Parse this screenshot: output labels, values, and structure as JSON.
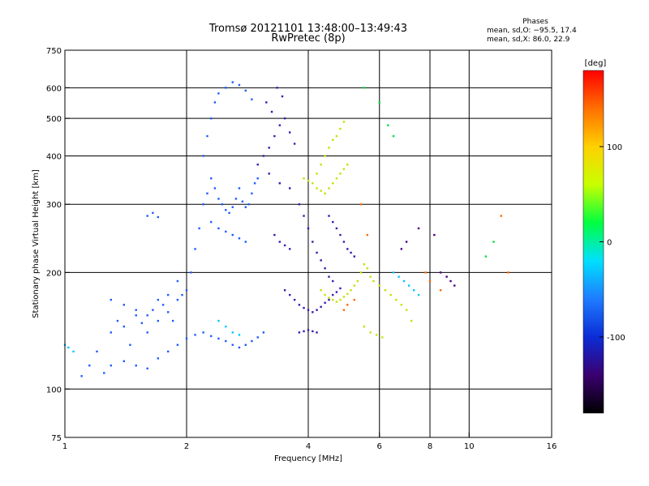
{
  "header": {
    "title_line1": "Tromsø 20121101 13:48:00–13:49:43",
    "title_line2": "RwPretec (8p)",
    "phase_heading": "Phases",
    "phase_o": "mean, sd,O: −95.5, 17.4",
    "phase_x": "mean, sd,X: 86.0, 22.9"
  },
  "chart_data": {
    "type": "scatter",
    "title": "Tromsø 20121101 13:48:00–13:49:43",
    "subtitle": "RwPretec (8p)",
    "xlabel": "Frequency [MHz]",
    "ylabel": "Stationary phase Virtual Height [km]",
    "x_scale": "log",
    "y_scale": "log",
    "xlim": [
      1,
      16
    ],
    "ylim": [
      75,
      750
    ],
    "x_ticks": [
      1,
      2,
      4,
      6,
      8,
      10,
      16
    ],
    "y_ticks": [
      75,
      100,
      200,
      300,
      400,
      500,
      600,
      750
    ],
    "x_grid": [
      2,
      4,
      6,
      8,
      10
    ],
    "y_grid": [
      100,
      200,
      300,
      400,
      500,
      600
    ],
    "grid": true,
    "colorbar": {
      "label": "[deg]",
      "range": [
        -180,
        180
      ],
      "ticks": [
        100,
        0,
        -100
      ],
      "colors": [
        "#000000",
        "#3a0070",
        "#0b2cd6",
        "#1f7cff",
        "#00e0ff",
        "#00ff40",
        "#c8ff00",
        "#ffd000",
        "#ff7000",
        "#ff0000"
      ]
    },
    "series": [
      {
        "color": "#1f5cff",
        "points": [
          [
            1.1,
            108
          ],
          [
            1.15,
            115
          ],
          [
            1.2,
            125
          ],
          [
            1.25,
            110
          ],
          [
            1.3,
            140
          ],
          [
            1.35,
            150
          ],
          [
            1.4,
            145
          ],
          [
            1.45,
            130
          ],
          [
            1.5,
            155
          ],
          [
            1.55,
            148
          ],
          [
            1.6,
            140
          ],
          [
            1.65,
            160
          ],
          [
            1.7,
            150
          ],
          [
            1.75,
            165
          ],
          [
            1.8,
            158
          ],
          [
            1.85,
            150
          ],
          [
            1.9,
            170
          ],
          [
            1.95,
            175
          ],
          [
            2.0,
            180
          ],
          [
            2.05,
            200
          ],
          [
            2.1,
            230
          ],
          [
            2.15,
            260
          ],
          [
            2.2,
            300
          ],
          [
            2.25,
            320
          ],
          [
            2.3,
            350
          ],
          [
            2.35,
            330
          ],
          [
            2.4,
            310
          ],
          [
            2.45,
            300
          ],
          [
            2.5,
            290
          ],
          [
            2.55,
            285
          ],
          [
            2.6,
            295
          ],
          [
            2.65,
            310
          ],
          [
            2.7,
            330
          ],
          [
            2.75,
            305
          ],
          [
            2.8,
            295
          ],
          [
            2.85,
            300
          ],
          [
            2.9,
            320
          ],
          [
            2.95,
            340
          ],
          [
            3.0,
            350
          ],
          [
            2.2,
            400
          ],
          [
            2.25,
            450
          ],
          [
            2.3,
            500
          ],
          [
            2.35,
            550
          ],
          [
            2.4,
            580
          ],
          [
            2.5,
            600
          ],
          [
            2.6,
            620
          ],
          [
            2.7,
            610
          ],
          [
            2.8,
            590
          ],
          [
            2.9,
            560
          ],
          [
            1.3,
            170
          ],
          [
            1.4,
            165
          ],
          [
            1.5,
            160
          ],
          [
            1.6,
            155
          ],
          [
            1.7,
            170
          ],
          [
            1.8,
            175
          ],
          [
            1.9,
            190
          ],
          [
            1.3,
            115
          ],
          [
            1.4,
            118
          ],
          [
            1.5,
            115
          ],
          [
            1.6,
            113
          ],
          [
            1.7,
            120
          ],
          [
            1.8,
            125
          ],
          [
            1.9,
            130
          ],
          [
            2.0,
            135
          ],
          [
            2.1,
            138
          ],
          [
            2.2,
            140
          ],
          [
            2.3,
            137
          ],
          [
            2.4,
            135
          ],
          [
            2.5,
            133
          ],
          [
            2.6,
            130
          ],
          [
            2.7,
            128
          ],
          [
            2.8,
            130
          ],
          [
            2.9,
            133
          ],
          [
            3.0,
            136
          ],
          [
            3.1,
            140
          ],
          [
            1.6,
            280
          ],
          [
            1.65,
            285
          ],
          [
            1.7,
            278
          ],
          [
            2.3,
            270
          ],
          [
            2.4,
            260
          ],
          [
            2.5,
            255
          ],
          [
            2.6,
            250
          ],
          [
            2.7,
            245
          ],
          [
            2.8,
            240
          ]
        ]
      },
      {
        "color": "#3a1ab0",
        "points": [
          [
            3.1,
            400
          ],
          [
            3.2,
            420
          ],
          [
            3.3,
            450
          ],
          [
            3.4,
            480
          ],
          [
            3.5,
            500
          ],
          [
            3.6,
            460
          ],
          [
            3.7,
            430
          ],
          [
            3.15,
            550
          ],
          [
            3.25,
            520
          ],
          [
            3.35,
            600
          ],
          [
            3.45,
            570
          ],
          [
            3.0,
            380
          ],
          [
            3.2,
            360
          ],
          [
            3.4,
            340
          ],
          [
            3.6,
            330
          ],
          [
            3.8,
            300
          ],
          [
            3.9,
            280
          ],
          [
            4.0,
            260
          ],
          [
            4.1,
            240
          ],
          [
            4.2,
            225
          ],
          [
            4.3,
            215
          ],
          [
            4.4,
            205
          ],
          [
            4.5,
            195
          ],
          [
            4.6,
            190
          ],
          [
            3.5,
            180
          ],
          [
            3.6,
            175
          ],
          [
            3.7,
            170
          ],
          [
            3.8,
            165
          ],
          [
            3.9,
            162
          ],
          [
            4.0,
            160
          ],
          [
            4.1,
            158
          ],
          [
            4.2,
            160
          ],
          [
            4.3,
            163
          ],
          [
            4.4,
            167
          ],
          [
            4.5,
            170
          ],
          [
            4.6,
            175
          ],
          [
            4.7,
            178
          ],
          [
            4.8,
            182
          ],
          [
            3.3,
            250
          ],
          [
            3.4,
            240
          ],
          [
            3.5,
            235
          ],
          [
            3.6,
            230
          ],
          [
            4.5,
            280
          ],
          [
            4.6,
            270
          ],
          [
            4.7,
            260
          ],
          [
            4.8,
            250
          ],
          [
            4.9,
            240
          ],
          [
            5.0,
            230
          ],
          [
            5.1,
            225
          ],
          [
            5.2,
            220
          ],
          [
            3.8,
            140
          ],
          [
            3.9,
            141
          ],
          [
            4.0,
            142
          ],
          [
            4.1,
            141
          ],
          [
            4.2,
            140
          ]
        ]
      },
      {
        "color": "#c8e000",
        "points": [
          [
            3.9,
            350
          ],
          [
            4.0,
            345
          ],
          [
            4.1,
            340
          ],
          [
            4.2,
            360
          ],
          [
            4.3,
            380
          ],
          [
            4.4,
            400
          ],
          [
            4.5,
            420
          ],
          [
            4.6,
            440
          ],
          [
            4.7,
            450
          ],
          [
            4.8,
            470
          ],
          [
            4.9,
            490
          ],
          [
            4.2,
            330
          ],
          [
            4.3,
            325
          ],
          [
            4.4,
            320
          ],
          [
            4.5,
            330
          ],
          [
            4.6,
            340
          ],
          [
            4.7,
            350
          ],
          [
            4.8,
            360
          ],
          [
            4.9,
            370
          ],
          [
            5.0,
            380
          ],
          [
            4.3,
            180
          ],
          [
            4.4,
            175
          ],
          [
            4.5,
            172
          ],
          [
            4.6,
            170
          ],
          [
            4.7,
            168
          ],
          [
            4.8,
            170
          ],
          [
            4.9,
            173
          ],
          [
            5.0,
            176
          ],
          [
            5.1,
            180
          ],
          [
            5.2,
            185
          ],
          [
            5.3,
            190
          ],
          [
            5.4,
            200
          ],
          [
            5.5,
            210
          ],
          [
            5.6,
            205
          ],
          [
            5.7,
            195
          ],
          [
            5.8,
            190
          ],
          [
            6.0,
            185
          ],
          [
            6.2,
            180
          ],
          [
            6.4,
            175
          ],
          [
            6.6,
            170
          ],
          [
            6.8,
            165
          ],
          [
            7.0,
            160
          ],
          [
            7.2,
            150
          ],
          [
            5.5,
            145
          ],
          [
            5.7,
            140
          ],
          [
            5.9,
            138
          ],
          [
            6.1,
            136
          ]
        ]
      },
      {
        "color": "#00c8ff",
        "points": [
          [
            1.0,
            130
          ],
          [
            1.02,
            128
          ],
          [
            1.05,
            125
          ],
          [
            2.4,
            150
          ],
          [
            2.5,
            145
          ],
          [
            2.6,
            140
          ],
          [
            2.7,
            138
          ],
          [
            6.5,
            200
          ],
          [
            6.7,
            195
          ],
          [
            6.9,
            190
          ],
          [
            7.1,
            185
          ],
          [
            7.3,
            180
          ],
          [
            7.5,
            175
          ]
        ]
      },
      {
        "color": "#ff6a00",
        "points": [
          [
            4.9,
            160
          ],
          [
            5.0,
            165
          ],
          [
            5.2,
            170
          ],
          [
            5.4,
            300
          ],
          [
            5.6,
            250
          ],
          [
            7.8,
            200
          ],
          [
            8.0,
            190
          ],
          [
            8.5,
            180
          ],
          [
            12.5,
            200
          ],
          [
            12.0,
            280
          ]
        ]
      },
      {
        "color": "#00e040",
        "points": [
          [
            5.5,
            600
          ],
          [
            6.0,
            550
          ],
          [
            6.3,
            480
          ],
          [
            6.5,
            450
          ],
          [
            11,
            220
          ],
          [
            11.5,
            240
          ]
        ]
      },
      {
        "color": "#4a0080",
        "points": [
          [
            8.5,
            200
          ],
          [
            8.8,
            195
          ],
          [
            9.0,
            190
          ],
          [
            9.2,
            185
          ],
          [
            8.2,
            250
          ],
          [
            7.5,
            260
          ],
          [
            7.0,
            240
          ],
          [
            6.8,
            230
          ]
        ]
      }
    ]
  }
}
